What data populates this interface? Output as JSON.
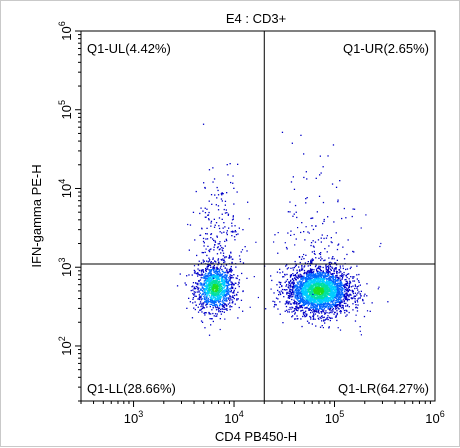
{
  "chart_data": {
    "type": "scatter",
    "title": "E4 : CD3+",
    "xlabel": "CD4 PB450-H",
    "ylabel": "IFN-gamma PE-H",
    "xscale": "log",
    "yscale": "log",
    "xlim": [
      300,
      1000000
    ],
    "ylim": [
      20,
      1000000
    ],
    "x_ticks": [
      {
        "value": 1000,
        "label": "10",
        "exp": "3"
      },
      {
        "value": 10000,
        "label": "10",
        "exp": "4"
      },
      {
        "value": 100000,
        "label": "10",
        "exp": "5"
      },
      {
        "value": 1000000,
        "label": "10",
        "exp": "6"
      }
    ],
    "y_ticks": [
      {
        "value": 100,
        "label": "10",
        "exp": "2"
      },
      {
        "value": 1000,
        "label": "10",
        "exp": "3"
      },
      {
        "value": 10000,
        "label": "10",
        "exp": "4"
      },
      {
        "value": 100000,
        "label": "10",
        "exp": "5"
      },
      {
        "value": 1000000,
        "label": "10",
        "exp": "6"
      }
    ],
    "quadrant_gate": {
      "x": 20000,
      "y": 1100
    },
    "quadrants": [
      {
        "label": "Q1-UL(4.42%)",
        "position": "top-left"
      },
      {
        "label": "Q1-UR(2.65%)",
        "position": "top-right"
      },
      {
        "label": "Q1-LL(28.66%)",
        "position": "bottom-left"
      },
      {
        "label": "Q1-LR(64.27%)",
        "position": "bottom-right"
      }
    ],
    "populations": [
      {
        "x": 6500,
        "y": 550,
        "spread_x": 0.1,
        "spread_y": 0.15,
        "fraction": 0.2866
      },
      {
        "x": 70000,
        "y": 500,
        "spread_x": 0.16,
        "spread_y": 0.15,
        "fraction": 0.6427
      },
      {
        "x": 7000,
        "y": 4000,
        "spread_x": 0.12,
        "spread_y": 0.45,
        "fraction": 0.0442
      },
      {
        "x": 60000,
        "y": 4000,
        "spread_x": 0.2,
        "spread_y": 0.45,
        "fraction": 0.0265
      }
    ],
    "color_scale": [
      "#0000c8",
      "#0066ff",
      "#00ccff",
      "#00e0a0",
      "#20e020"
    ]
  }
}
